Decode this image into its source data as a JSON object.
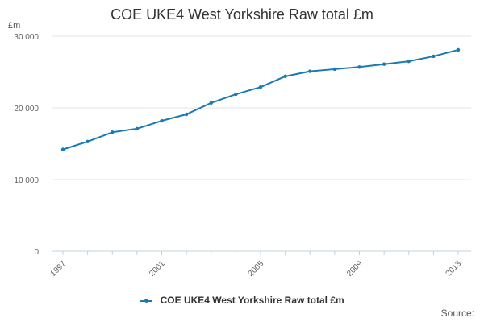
{
  "chart_data": {
    "type": "line",
    "title": "COE UKE4 West Yorkshire Raw total £m",
    "ylabel": "£m",
    "xlabel": "",
    "x": [
      1997,
      1998,
      1999,
      2000,
      2001,
      2002,
      2003,
      2004,
      2005,
      2006,
      2007,
      2008,
      2009,
      2010,
      2011,
      2012,
      2013
    ],
    "x_tick_labels": [
      "1997",
      "2001",
      "2005",
      "2009",
      "2013"
    ],
    "y_tick_labels": [
      "0",
      "10 000",
      "20 000",
      "30 000"
    ],
    "ylim": [
      0,
      30000
    ],
    "grid": true,
    "legend_placement": "bottom",
    "series": [
      {
        "name": "COE UKE4 West Yorkshire Raw total £m",
        "color": "#1a7ab4",
        "values": [
          14200,
          15300,
          16600,
          17100,
          18200,
          19100,
          20700,
          21900,
          22900,
          24400,
          25100,
          25400,
          25700,
          26100,
          26500,
          27200,
          28100
        ]
      }
    ]
  },
  "source_label": "Source:"
}
